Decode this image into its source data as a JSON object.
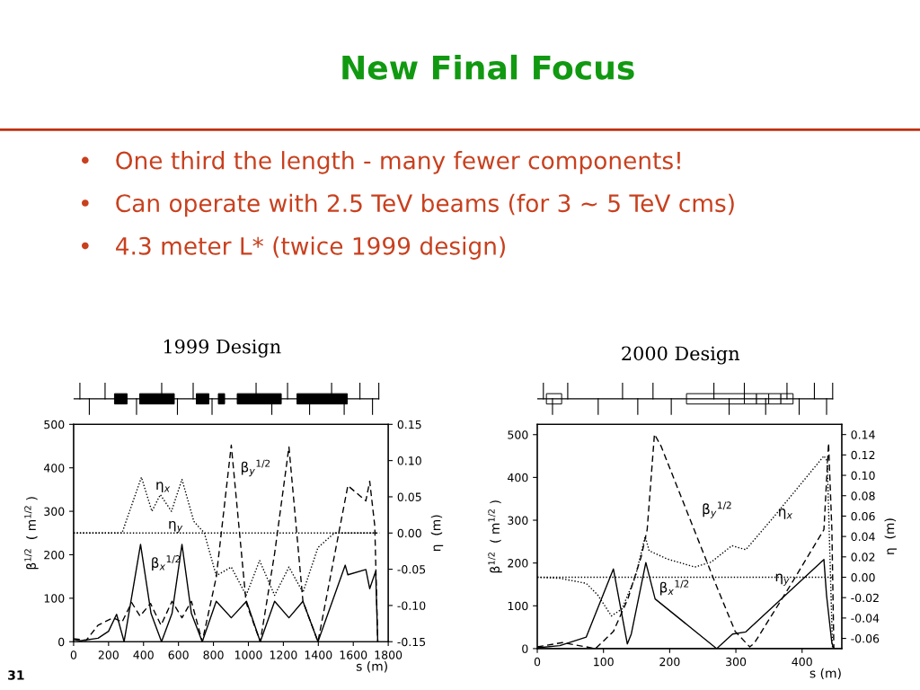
{
  "chart_data": [
    {
      "type": "line",
      "title": "1999 Design",
      "xlabel": "s (m)",
      "ylabel": "β$^{1/2}$  ( m$^{1/2}$ )",
      "y2label": "η  (m)",
      "annotations": [
        "New Final Focus",
        "•   One third the length - many fewer components!",
        "•   Can operate with 2.5 TeV beams (for 3 ~ 5 TeV cms)",
        "•   4.3 meter L* (twice 1999 design)",
        "31"
      ],
      "xlim": [
        0,
        1800
      ],
      "xticks": [
        0,
        200,
        400,
        600,
        800,
        1000,
        1200,
        1400,
        1600,
        1800
      ],
      "ylim": [
        0,
        500
      ],
      "yticks": [
        0,
        100,
        200,
        300,
        400,
        500
      ],
      "y2lim": [
        -0.15,
        0.15
      ],
      "y2ticks": [
        {
          "value": -0.15,
          "label": "-0.15"
        },
        {
          "value": -0.1,
          "label": "-0.10"
        },
        {
          "value": -0.05,
          "label": "-0.05"
        },
        {
          "value": 0,
          "label": "0.00"
        },
        {
          "value": 0.05,
          "label": "0.05"
        },
        {
          "value": 0.1,
          "label": "0.10"
        },
        {
          "value": 0.15,
          "label": "0.15"
        }
      ],
      "grid": false,
      "legend": false,
      "series": [
        {
          "name": "β$_{x}$$^{1/2}$",
          "color": "#000000",
          "line_style": "solid",
          "x": [
            0,
            38,
            140,
            200,
            246,
            289,
            383,
            443,
            503,
            563,
            620,
            674,
            736,
            816,
            902,
            989,
            1068,
            1150,
            1232,
            1312,
            1398,
            1554,
            1569,
            1672,
            1694,
            1728,
            1740
          ],
          "values": [
            5,
            2,
            8,
            24,
            63,
            0,
            224,
            65,
            0,
            65,
            224,
            65,
            0,
            93,
            55,
            93,
            0,
            93,
            55,
            93,
            0,
            176,
            154,
            166,
            122,
            162,
            0
          ]
        },
        {
          "name": "β$_{y}$$^{1/2}$",
          "color": "#000000",
          "line_style": "dashed",
          "x": [
            0,
            72,
            140,
            226,
            277,
            332,
            380,
            440,
            500,
            563,
            620,
            674,
            736,
            816,
            902,
            987,
            1068,
            1150,
            1232,
            1312,
            1398,
            1569,
            1672,
            1694,
            1723,
            1740
          ],
          "values": [
            7,
            3,
            38,
            55,
            45,
            90,
            59,
            88,
            38,
            93,
            55,
            93,
            0,
            148,
            452,
            90,
            0,
            203,
            448,
            93,
            0,
            359,
            324,
            369,
            266,
            0
          ]
        },
        {
          "name": "η$_{x}$",
          "color": "#000000",
          "line_style": "dotted",
          "axis": "y2",
          "x": [
            0,
            277,
            388,
            448,
            496,
            560,
            620,
            688,
            748,
            816,
            902,
            987,
            1064,
            1150,
            1232,
            1312,
            1398,
            1492,
            1560,
            1732
          ],
          "values": [
            0,
            0,
            0.077,
            0.03,
            0.053,
            0.03,
            0.074,
            0.016,
            0,
            -0.059,
            -0.047,
            -0.086,
            -0.038,
            -0.086,
            -0.047,
            -0.082,
            -0.02,
            0,
            0,
            0
          ]
        },
        {
          "name": "η$_{y}$",
          "color": "#000000",
          "line_style": "dotted",
          "axis": "y2",
          "x": [
            0,
            1750
          ],
          "values": [
            0,
            0
          ]
        }
      ]
    },
    {
      "type": "line",
      "title": "2000 Design",
      "xlabel": "s (m)",
      "ylabel": "β$^{1/2}$  ( m$^{1/2}$ )",
      "y2label": "η  (m)",
      "xlim": [
        0,
        460
      ],
      "xticks": [
        0,
        100,
        200,
        300,
        400
      ],
      "ylim": [
        0,
        524
      ],
      "yticks": [
        0,
        100,
        200,
        300,
        400,
        500
      ],
      "y2lim": [
        -0.07,
        0.15
      ],
      "y2ticks": [
        {
          "value": -0.06,
          "label": "-0.06"
        },
        {
          "value": -0.04,
          "label": "-0.04"
        },
        {
          "value": -0.02,
          "label": "-0.02"
        },
        {
          "value": 0,
          "label": "0.00"
        },
        {
          "value": 0.02,
          "label": "0.02"
        },
        {
          "value": 0.04,
          "label": "0.04"
        },
        {
          "value": 0.06,
          "label": "0.06"
        },
        {
          "value": 0.08,
          "label": "0.08"
        },
        {
          "value": 0.1,
          "label": "0.10"
        },
        {
          "value": 0.12,
          "label": "0.12"
        },
        {
          "value": 0.14,
          "label": "0.14"
        }
      ],
      "grid": false,
      "legend": false,
      "series": [
        {
          "name": "β$_{x}$$^{1/2}$",
          "color": "#000000",
          "line_style": "solid",
          "x": [
            0,
            34,
            74,
            115,
            136,
            142,
            164,
            178,
            271,
            295,
            315,
            433,
            437,
            445,
            448
          ],
          "values": [
            2,
            7,
            27,
            186,
            11,
            34,
            201,
            116,
            0,
            34,
            39,
            208,
            124,
            13,
            0
          ]
        },
        {
          "name": "β$_{y}$$^{1/2}$",
          "color": "#000000",
          "line_style": "dashed",
          "x": [
            0,
            38,
            74,
            88,
            115,
            137,
            157,
            166,
            177,
            187,
            271,
            299,
            321,
            328,
            384,
            433,
            440,
            445,
            448
          ],
          "values": [
            4,
            14,
            4,
            0,
            40,
            117,
            215,
            278,
            501,
            473,
            145,
            40,
            4,
            13,
            152,
            278,
            480,
            278,
            0
          ]
        },
        {
          "name": "η$_{x}$",
          "color": "#000000",
          "line_style": "dotted",
          "axis": "y2",
          "x": [
            0,
            34,
            74,
            92,
            112,
            128,
            148,
            163,
            169,
            196,
            238,
            263,
            294,
            315,
            357,
            433,
            438,
            446
          ],
          "values": [
            0,
            -0.001,
            -0.006,
            -0.018,
            -0.038,
            -0.031,
            0,
            0.04,
            0.026,
            0.018,
            0.01,
            0.015,
            0.031,
            0.027,
            0.059,
            0.119,
            0.114,
            -0.07
          ]
        },
        {
          "name": "η$_{y}$",
          "color": "#000000",
          "line_style": "dotted",
          "axis": "y2",
          "x": [
            0,
            447
          ],
          "values": [
            0,
            0
          ]
        }
      ]
    }
  ]
}
